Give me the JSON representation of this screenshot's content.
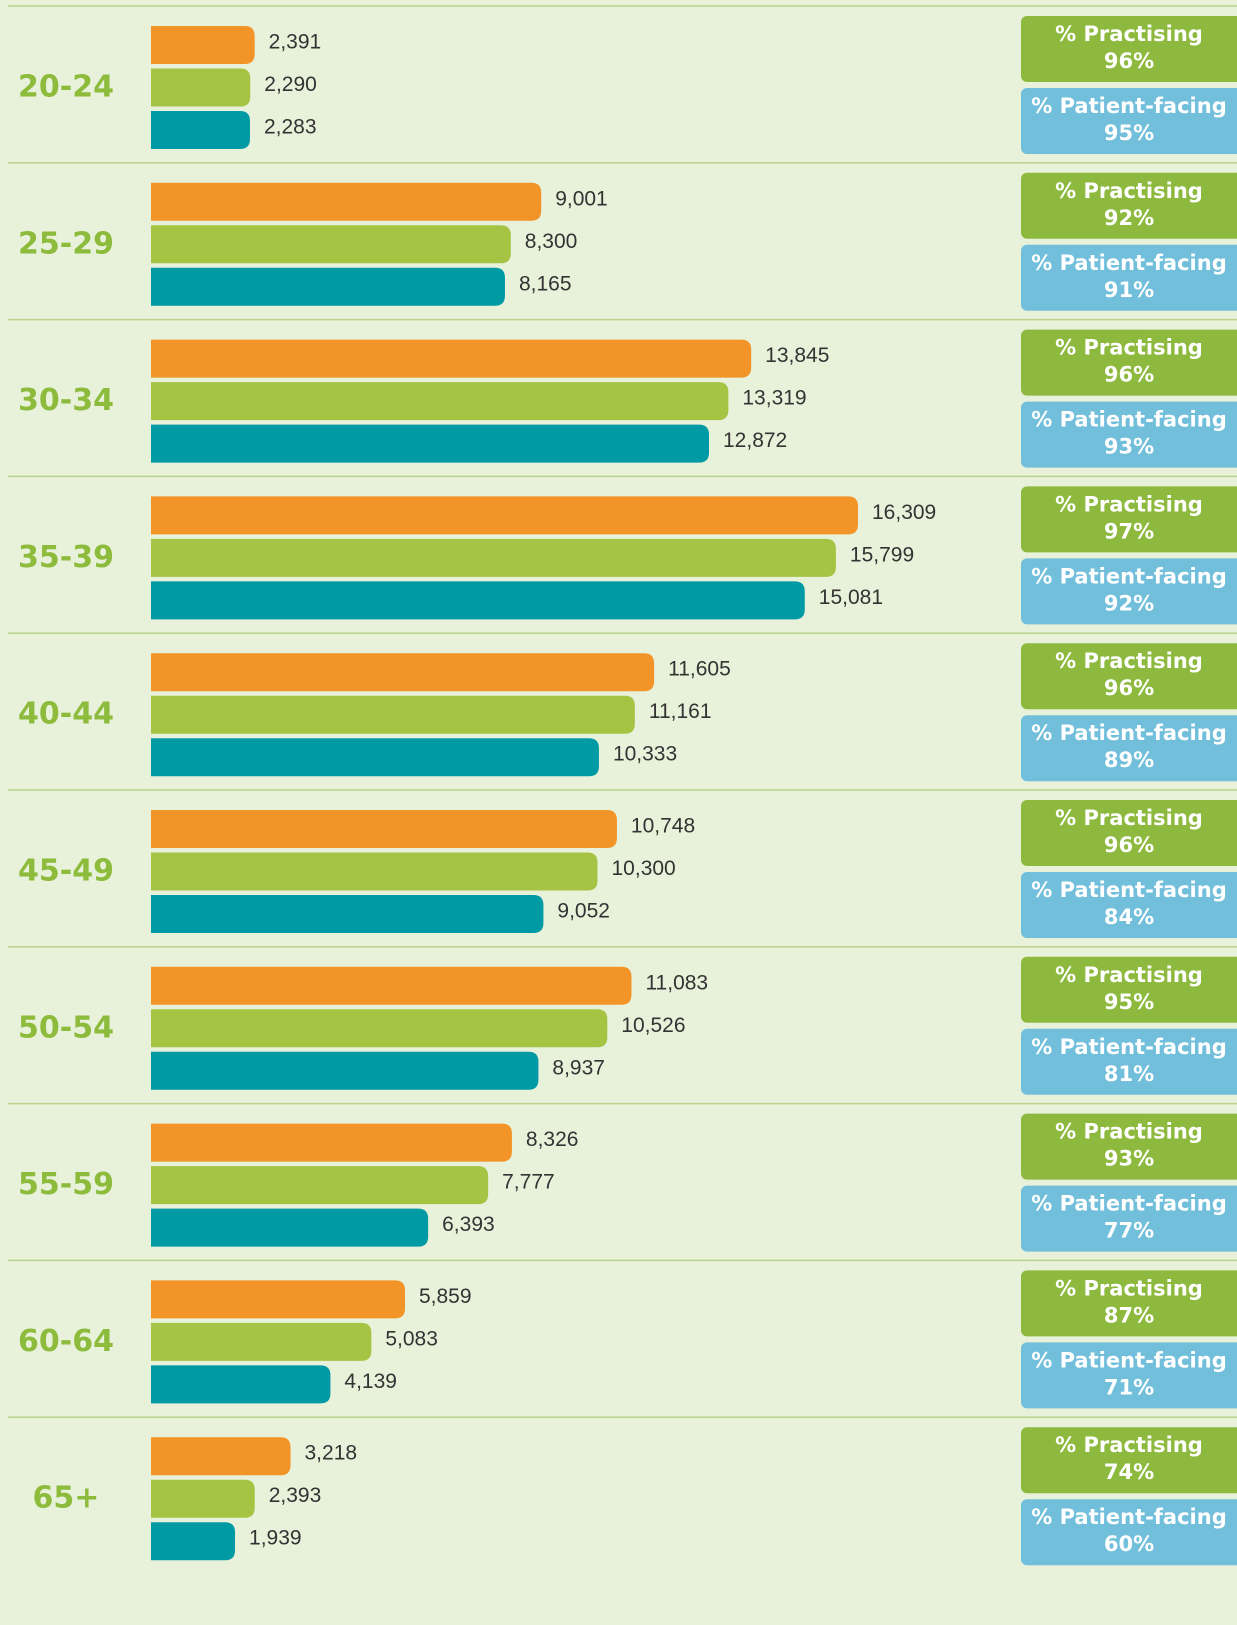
{
  "chart_data": {
    "type": "bar",
    "categories": [
      "20-24",
      "25-29",
      "30-34",
      "35-39",
      "40-44",
      "45-49",
      "50-54",
      "55-59",
      "60-64",
      "65+"
    ],
    "series": [
      {
        "color": "#f39428",
        "values": [
          2391,
          9001,
          13845,
          16309,
          11605,
          10748,
          11083,
          8326,
          5859,
          3218
        ],
        "value_labels": [
          "2,391",
          "9,001",
          "13,845",
          "16,309",
          "11,605",
          "10,748",
          "11,083",
          "8,326",
          "5,859",
          "3,218"
        ]
      },
      {
        "color": "#a5c443",
        "values": [
          2290,
          8300,
          13319,
          15799,
          11161,
          10300,
          10526,
          7777,
          5083,
          2393
        ],
        "value_labels": [
          "2,290",
          "8,300",
          "13,319",
          "15,799",
          "11,161",
          "10,300",
          "10,526",
          "7,777",
          "5,083",
          "2,393"
        ]
      },
      {
        "color": "#009aa5",
        "values": [
          2283,
          8165,
          12872,
          15081,
          10333,
          9052,
          8937,
          6393,
          4139,
          1939
        ],
        "value_labels": [
          "2,283",
          "8,165",
          "12,872",
          "15,081",
          "10,333",
          "9,052",
          "8,937",
          "6,393",
          "4,139",
          "1,939"
        ]
      }
    ],
    "badges": {
      "practising_label": "% Practising",
      "practising_color": "#8dba3e",
      "practising": [
        "96%",
        "92%",
        "96%",
        "97%",
        "96%",
        "96%",
        "95%",
        "93%",
        "87%",
        "74%"
      ],
      "patient_facing_label": "% Patient-facing",
      "patient_facing_color": "#72bfdc",
      "patient_facing": [
        "95%",
        "91%",
        "93%",
        "92%",
        "89%",
        "84%",
        "81%",
        "77%",
        "71%",
        "60%"
      ]
    }
  }
}
